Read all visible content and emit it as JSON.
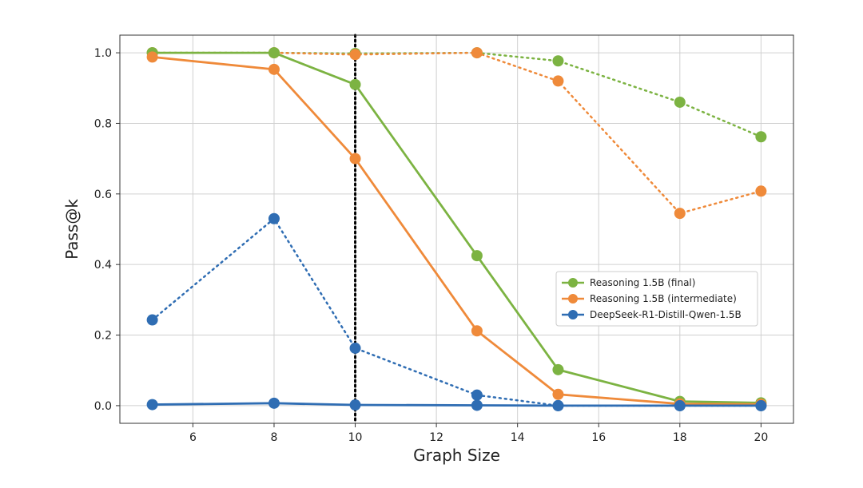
{
  "chart_data": {
    "type": "line",
    "xlabel": "Graph Size",
    "ylabel": "Pass@k",
    "xlim": [
      4.2,
      20.8
    ],
    "ylim": [
      -0.05,
      1.05
    ],
    "x_ticks": [
      6,
      8,
      10,
      12,
      14,
      16,
      18,
      20
    ],
    "y_ticks": [
      0.0,
      0.2,
      0.4,
      0.6,
      0.8,
      1.0
    ],
    "x": [
      5,
      8,
      10,
      13,
      15,
      18,
      20
    ],
    "grid": true,
    "legend_position": "center-right",
    "reference_line": {
      "x": 10,
      "style": "dotted",
      "color": "#000000"
    },
    "series": [
      {
        "name": "Reasoning 1.5B (final)",
        "color": "#7cb342",
        "style": "solid",
        "in_legend": true,
        "values": [
          1.0,
          1.0,
          0.91,
          0.425,
          0.102,
          0.012,
          0.008
        ]
      },
      {
        "name": "Reasoning 1.5B (intermediate)",
        "color": "#ef8a3a",
        "style": "solid",
        "in_legend": true,
        "values": [
          0.988,
          0.953,
          0.7,
          0.212,
          0.032,
          0.005,
          0.004
        ]
      },
      {
        "name": "DeepSeek-R1-Distill-Qwen-1.5B",
        "color": "#2f6db3",
        "style": "solid",
        "in_legend": true,
        "values": [
          0.003,
          0.007,
          0.002,
          0.001,
          0.0,
          0.0,
          0.0
        ]
      },
      {
        "name": "",
        "color": "#7cb342",
        "style": "dotted",
        "in_legend": false,
        "values": [
          1.0,
          1.0,
          0.998,
          1.0,
          0.977,
          0.86,
          0.762
        ]
      },
      {
        "name": "",
        "color": "#ef8a3a",
        "style": "dotted",
        "in_legend": false,
        "values": [
          1.0,
          1.0,
          0.995,
          1.0,
          0.92,
          0.545,
          0.608
        ]
      },
      {
        "name": "",
        "color": "#2f6db3",
        "style": "dotted",
        "in_legend": false,
        "values": [
          0.243,
          0.53,
          0.163,
          0.03,
          0.0,
          0.0,
          0.0
        ]
      }
    ]
  }
}
